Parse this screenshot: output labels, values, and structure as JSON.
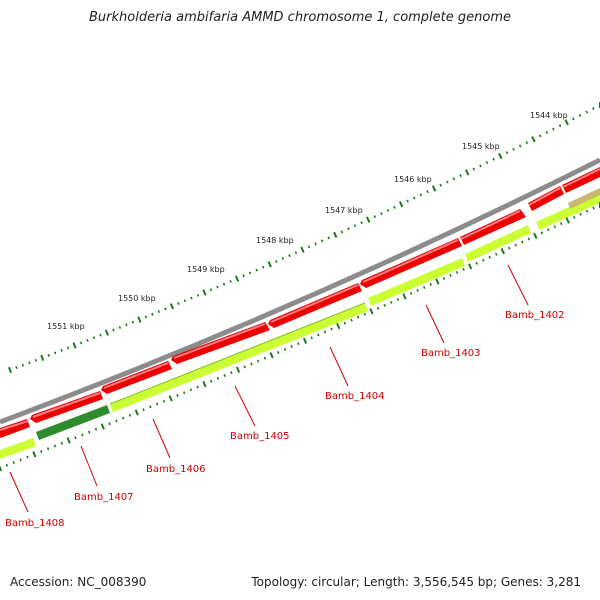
{
  "title": "Burkholderia ambifaria AMMD chromosome 1, complete genome",
  "footer": {
    "accession": "Accession: NC_008390",
    "topology": "Topology: circular; Length: 3,556,545 bp; Genes: 3,281"
  },
  "colors": {
    "backbone": "#8c8c8c",
    "cds_forward": "#ff0000",
    "cds_reverse": "#ccff33",
    "cds_highlight": "#2e8b2e",
    "tick": "#1a7a1a",
    "gene_label": "#cc0000"
  },
  "scale_labels": [
    "1544 kbp",
    "1545 kbp",
    "1546 kbp",
    "1547 kbp",
    "1548 kbp",
    "1549 kbp",
    "1550 kbp",
    "1551 kbp"
  ],
  "gene_labels": [
    "Bamb_1402",
    "Bamb_1403",
    "Bamb_1404",
    "Bamb_1405",
    "Bamb_1406",
    "Bamb_1407",
    "Bamb_1408"
  ]
}
